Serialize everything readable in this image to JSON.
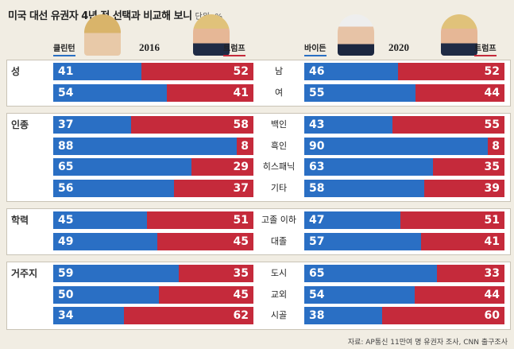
{
  "header": {
    "title": "미국 대선 유권자 4년 전 선택과 비교해 보니",
    "unit": "단위: %"
  },
  "legend": {
    "left": {
      "year": "2016",
      "dem": "클린턴",
      "rep": "트럼프"
    },
    "right": {
      "year": "2020",
      "dem": "바이든",
      "rep": "트럼프"
    }
  },
  "colors": {
    "democrat": "#2a6fc4",
    "republican": "#c52a3b",
    "background": "#f1ede3"
  },
  "source": "자료: AP통신 11만여 명 유권자 조사, CNN 출구조사",
  "chart_data": {
    "type": "bar",
    "orientation": "horizontal-stacked",
    "title": "미국 대선 유권자 4년 전 선택과 비교해 보니",
    "unit": "단위: %",
    "groups": [
      {
        "category": "성",
        "rows": [
          {
            "label": "남",
            "y2016": [
              41,
              52
            ],
            "y2020": [
              46,
              52
            ]
          },
          {
            "label": "여",
            "y2016": [
              54,
              41
            ],
            "y2020": [
              55,
              44
            ]
          }
        ]
      },
      {
        "category": "인종",
        "rows": [
          {
            "label": "백인",
            "y2016": [
              37,
              58
            ],
            "y2020": [
              43,
              55
            ]
          },
          {
            "label": "흑인",
            "y2016": [
              88,
              8
            ],
            "y2020": [
              90,
              8
            ]
          },
          {
            "label": "히스패닉",
            "y2016": [
              65,
              29
            ],
            "y2020": [
              63,
              35
            ]
          },
          {
            "label": "기타",
            "y2016": [
              56,
              37
            ],
            "y2020": [
              58,
              39
            ]
          }
        ]
      },
      {
        "category": "학력",
        "rows": [
          {
            "label": "고졸 이하",
            "y2016": [
              45,
              51
            ],
            "y2020": [
              47,
              51
            ]
          },
          {
            "label": "대졸",
            "y2016": [
              49,
              45
            ],
            "y2020": [
              57,
              41
            ]
          }
        ]
      },
      {
        "category": "거주지",
        "rows": [
          {
            "label": "도시",
            "y2016": [
              59,
              35
            ],
            "y2020": [
              65,
              33
            ]
          },
          {
            "label": "교외",
            "y2016": [
              50,
              45
            ],
            "y2020": [
              54,
              44
            ]
          },
          {
            "label": "시골",
            "y2016": [
              34,
              62
            ],
            "y2020": [
              38,
              60
            ]
          }
        ]
      }
    ],
    "series": [
      {
        "name": "클린턴",
        "year": "2016"
      },
      {
        "name": "트럼프",
        "year": "2016"
      },
      {
        "name": "바이든",
        "year": "2020"
      },
      {
        "name": "트럼프",
        "year": "2020"
      }
    ]
  }
}
